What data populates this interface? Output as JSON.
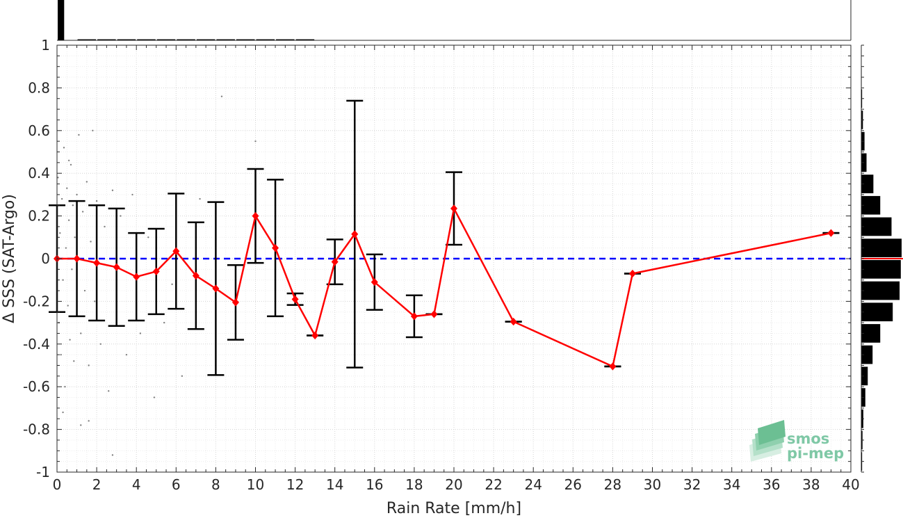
{
  "chart_data": {
    "type": "line",
    "xlabel": "Rain Rate [mm/h]",
    "ylabel": "Δ SSS (SAT-Argo)",
    "xlim": [
      0,
      40
    ],
    "ylim": [
      -1,
      1
    ],
    "xticks": [
      0,
      2,
      4,
      6,
      8,
      10,
      12,
      14,
      16,
      18,
      20,
      22,
      24,
      26,
      28,
      30,
      32,
      34,
      36,
      38,
      40
    ],
    "yticks": [
      -1,
      -0.8,
      -0.6,
      -0.4,
      -0.2,
      0,
      0.2,
      0.4,
      0.6,
      0.8,
      1
    ],
    "grid": true,
    "reference_line": {
      "y": 0,
      "color": "#0000ff",
      "style": "dashed"
    },
    "series": [
      {
        "kind": "binned_mean_with_std",
        "color": "#ff0000",
        "x": [
          0,
          1,
          2,
          3,
          4,
          5,
          6,
          7,
          8,
          9,
          10,
          11,
          12,
          13,
          14,
          15,
          16,
          18,
          19,
          20,
          23,
          28,
          29,
          39
        ],
        "mean": [
          0.0,
          0.0,
          -0.02,
          -0.04,
          -0.085,
          -0.06,
          0.035,
          -0.08,
          -0.14,
          -0.205,
          0.2,
          0.05,
          -0.19,
          -0.36,
          -0.015,
          0.115,
          -0.11,
          -0.27,
          -0.26,
          0.235,
          -0.295,
          -0.505,
          -0.07,
          0.12
        ],
        "std": [
          0.25,
          0.27,
          0.27,
          0.275,
          0.205,
          0.2,
          0.27,
          0.25,
          0.405,
          0.175,
          0.22,
          0.32,
          0.027,
          0.0,
          0.105,
          0.625,
          0.13,
          0.098,
          0.0,
          0.17,
          0.0,
          0.0,
          0.0,
          0.0
        ]
      }
    ],
    "scatter_sample": {
      "color": "#808080",
      "points": [
        [
          0.05,
          0.38
        ],
        [
          0.1,
          -0.3
        ],
        [
          0.15,
          0.12
        ],
        [
          0.2,
          -0.45
        ],
        [
          0.25,
          0.28
        ],
        [
          0.3,
          -0.1
        ],
        [
          0.35,
          0.52
        ],
        [
          0.4,
          -0.6
        ],
        [
          0.45,
          0.05
        ],
        [
          0.5,
          0.33
        ],
        [
          0.55,
          -0.22
        ],
        [
          0.6,
          0.18
        ],
        [
          0.65,
          -0.38
        ],
        [
          0.7,
          0.44
        ],
        [
          0.75,
          -0.05
        ],
        [
          0.8,
          0.25
        ],
        [
          0.85,
          -0.48
        ],
        [
          0.9,
          0.1
        ],
        [
          0.95,
          -0.27
        ],
        [
          1.0,
          0.3
        ],
        [
          1.1,
          0.58
        ],
        [
          1.2,
          -0.35
        ],
        [
          1.3,
          0.22
        ],
        [
          1.4,
          -0.15
        ],
        [
          1.5,
          0.36
        ],
        [
          1.6,
          -0.5
        ],
        [
          1.7,
          0.08
        ],
        [
          1.8,
          0.6
        ],
        [
          1.9,
          -0.2
        ],
        [
          2.0,
          0.27
        ],
        [
          2.2,
          -0.4
        ],
        [
          2.4,
          0.15
        ],
        [
          2.6,
          -0.62
        ],
        [
          2.8,
          0.32
        ],
        [
          3.0,
          -0.28
        ],
        [
          3.2,
          0.2
        ],
        [
          3.5,
          -0.45
        ],
        [
          3.8,
          0.3
        ],
        [
          4.2,
          -0.35
        ],
        [
          4.6,
          0.1
        ],
        [
          4.9,
          -0.65
        ],
        [
          5.4,
          -0.3
        ],
        [
          5.8,
          -0.12
        ],
        [
          6.3,
          -0.55
        ],
        [
          7.2,
          0.28
        ],
        [
          8.0,
          -0.5
        ],
        [
          8.3,
          0.76
        ],
        [
          1.2,
          -0.78
        ],
        [
          1.6,
          -0.76
        ],
        [
          2.8,
          -0.92
        ],
        [
          0.3,
          -0.72
        ],
        [
          0.6,
          0.46
        ],
        [
          10.0,
          0.55
        ]
      ]
    },
    "top_histogram": {
      "bin_width": 1,
      "relative_counts": [
        1.0,
        0.02,
        0.015,
        0.012,
        0.01,
        0.01,
        0.008,
        0.008,
        0.006,
        0.005,
        0.004,
        0.003,
        0.004,
        0.0,
        0.0,
        0.0,
        0.0,
        0.0,
        0.0,
        0.0,
        0.0,
        0.0,
        0.0,
        0.0,
        0.0,
        0.0,
        0.0,
        0.0,
        0.0,
        0.0,
        0.0,
        0.0,
        0.0,
        0.0,
        0.0,
        0.0,
        0.0,
        0.0,
        0.0,
        0.0
      ]
    },
    "right_histogram": {
      "bin_centers": [
        0.95,
        0.85,
        0.75,
        0.65,
        0.55,
        0.45,
        0.35,
        0.25,
        0.15,
        0.05,
        -0.05,
        -0.15,
        -0.25,
        -0.35,
        -0.45,
        -0.55,
        -0.65,
        -0.75,
        -0.85,
        -0.95
      ],
      "relative_counts": [
        0.0,
        0.01,
        0.02,
        0.04,
        0.08,
        0.13,
        0.3,
        0.47,
        0.75,
        1.0,
        0.98,
        0.95,
        0.78,
        0.47,
        0.28,
        0.16,
        0.1,
        0.05,
        0.03,
        0.02
      ],
      "mean_line_color": "#ff0000"
    }
  },
  "logo": {
    "line1": "smos",
    "line2": "pi-mep",
    "color": "#7fc8a6"
  }
}
